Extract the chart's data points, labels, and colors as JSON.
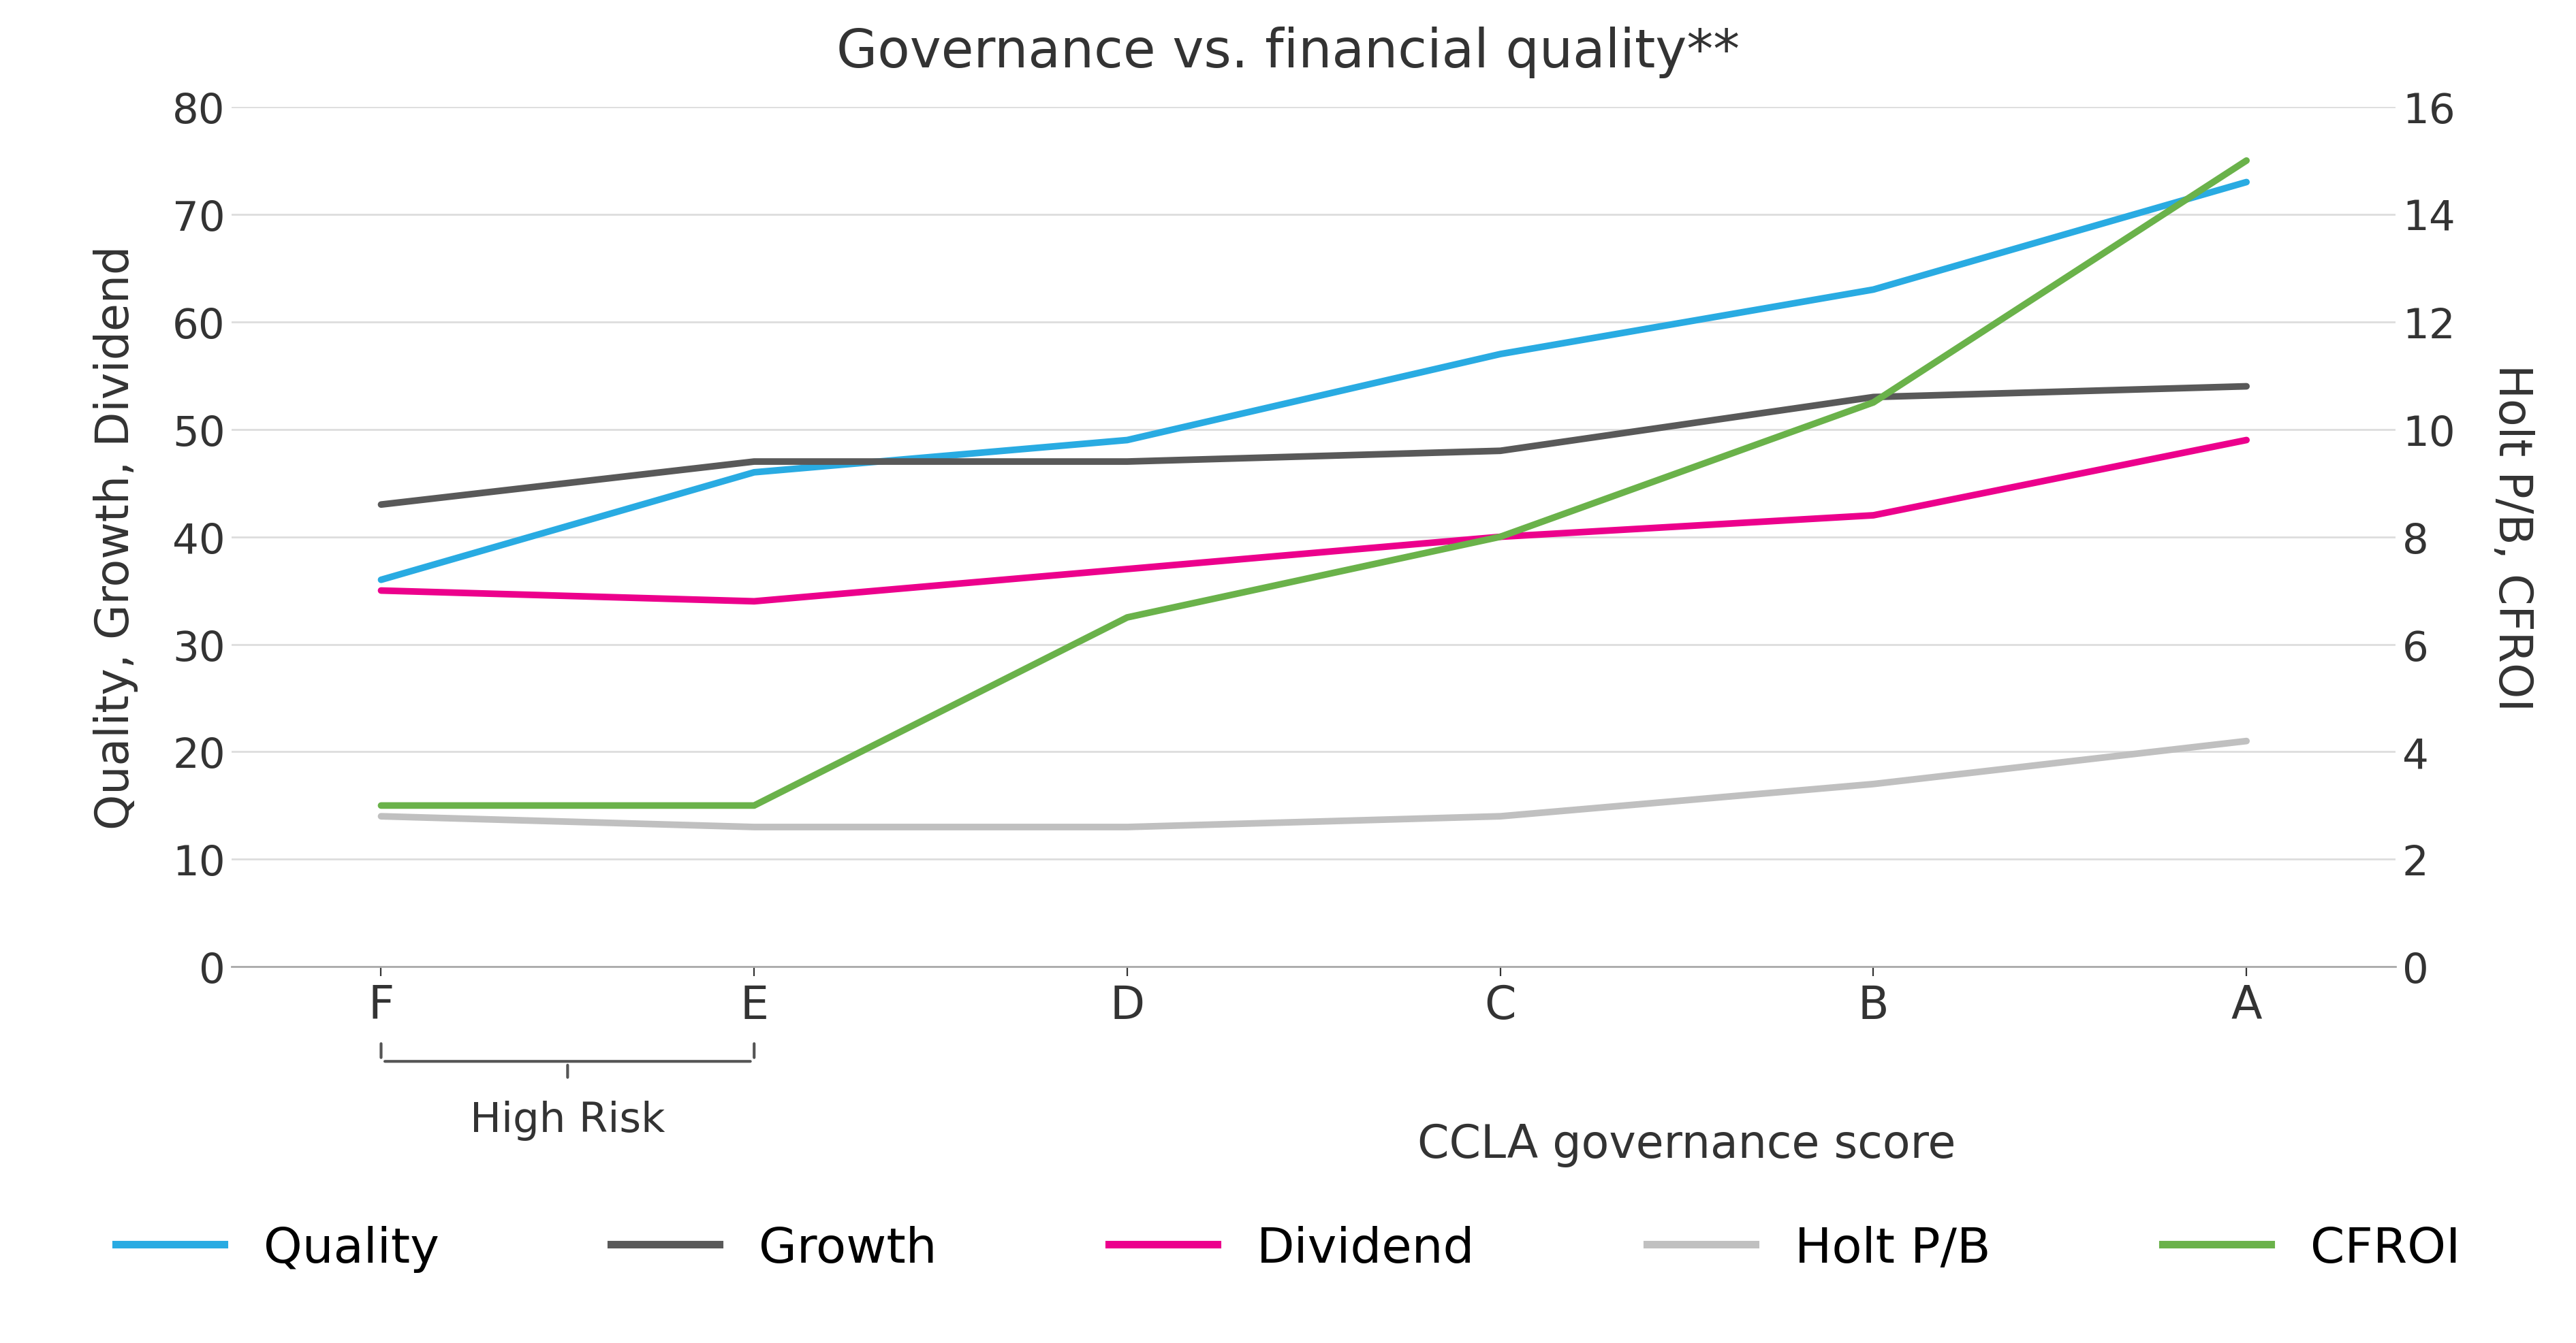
{
  "title": "Governance vs. financial quality**",
  "x_labels": [
    "F",
    "E",
    "D",
    "C",
    "B",
    "A"
  ],
  "x_positions": [
    0,
    1,
    2,
    3,
    4,
    5
  ],
  "xlabel": "CCLA governance score",
  "ylabel_left": "Quality, Growth, Dividend",
  "ylabel_right": "Holt P/B, CFROI",
  "ylim_left": [
    0,
    80
  ],
  "ylim_right": [
    0,
    16
  ],
  "yticks_left": [
    0,
    10,
    20,
    30,
    40,
    50,
    60,
    70,
    80
  ],
  "yticks_right": [
    0,
    2,
    4,
    6,
    8,
    10,
    12,
    14,
    16
  ],
  "series": {
    "Quality": {
      "values": [
        36,
        46,
        49,
        57,
        63,
        73
      ],
      "color": "#29ABE2",
      "linewidth": 3.5,
      "axis": "left"
    },
    "Growth": {
      "values": [
        43,
        47,
        47,
        48,
        53,
        54
      ],
      "color": "#595959",
      "linewidth": 3.5,
      "axis": "left"
    },
    "Dividend": {
      "values": [
        35,
        34,
        37,
        40,
        42,
        49
      ],
      "color": "#EC008C",
      "linewidth": 3.5,
      "axis": "left"
    },
    "Holt P/B": {
      "values": [
        14,
        13,
        13,
        14,
        17,
        21
      ],
      "color": "#C0C0C0",
      "linewidth": 3.5,
      "axis": "left"
    },
    "CFROI": {
      "values": [
        3.0,
        3.0,
        6.5,
        8.0,
        10.5,
        15.0
      ],
      "color": "#6AB24A",
      "linewidth": 3.5,
      "axis": "right"
    }
  },
  "high_risk_label": "High Risk",
  "background_color": "#ffffff",
  "title_fontsize": 28,
  "axis_label_fontsize": 24,
  "tick_fontsize": 22,
  "legend_fontsize": 26
}
